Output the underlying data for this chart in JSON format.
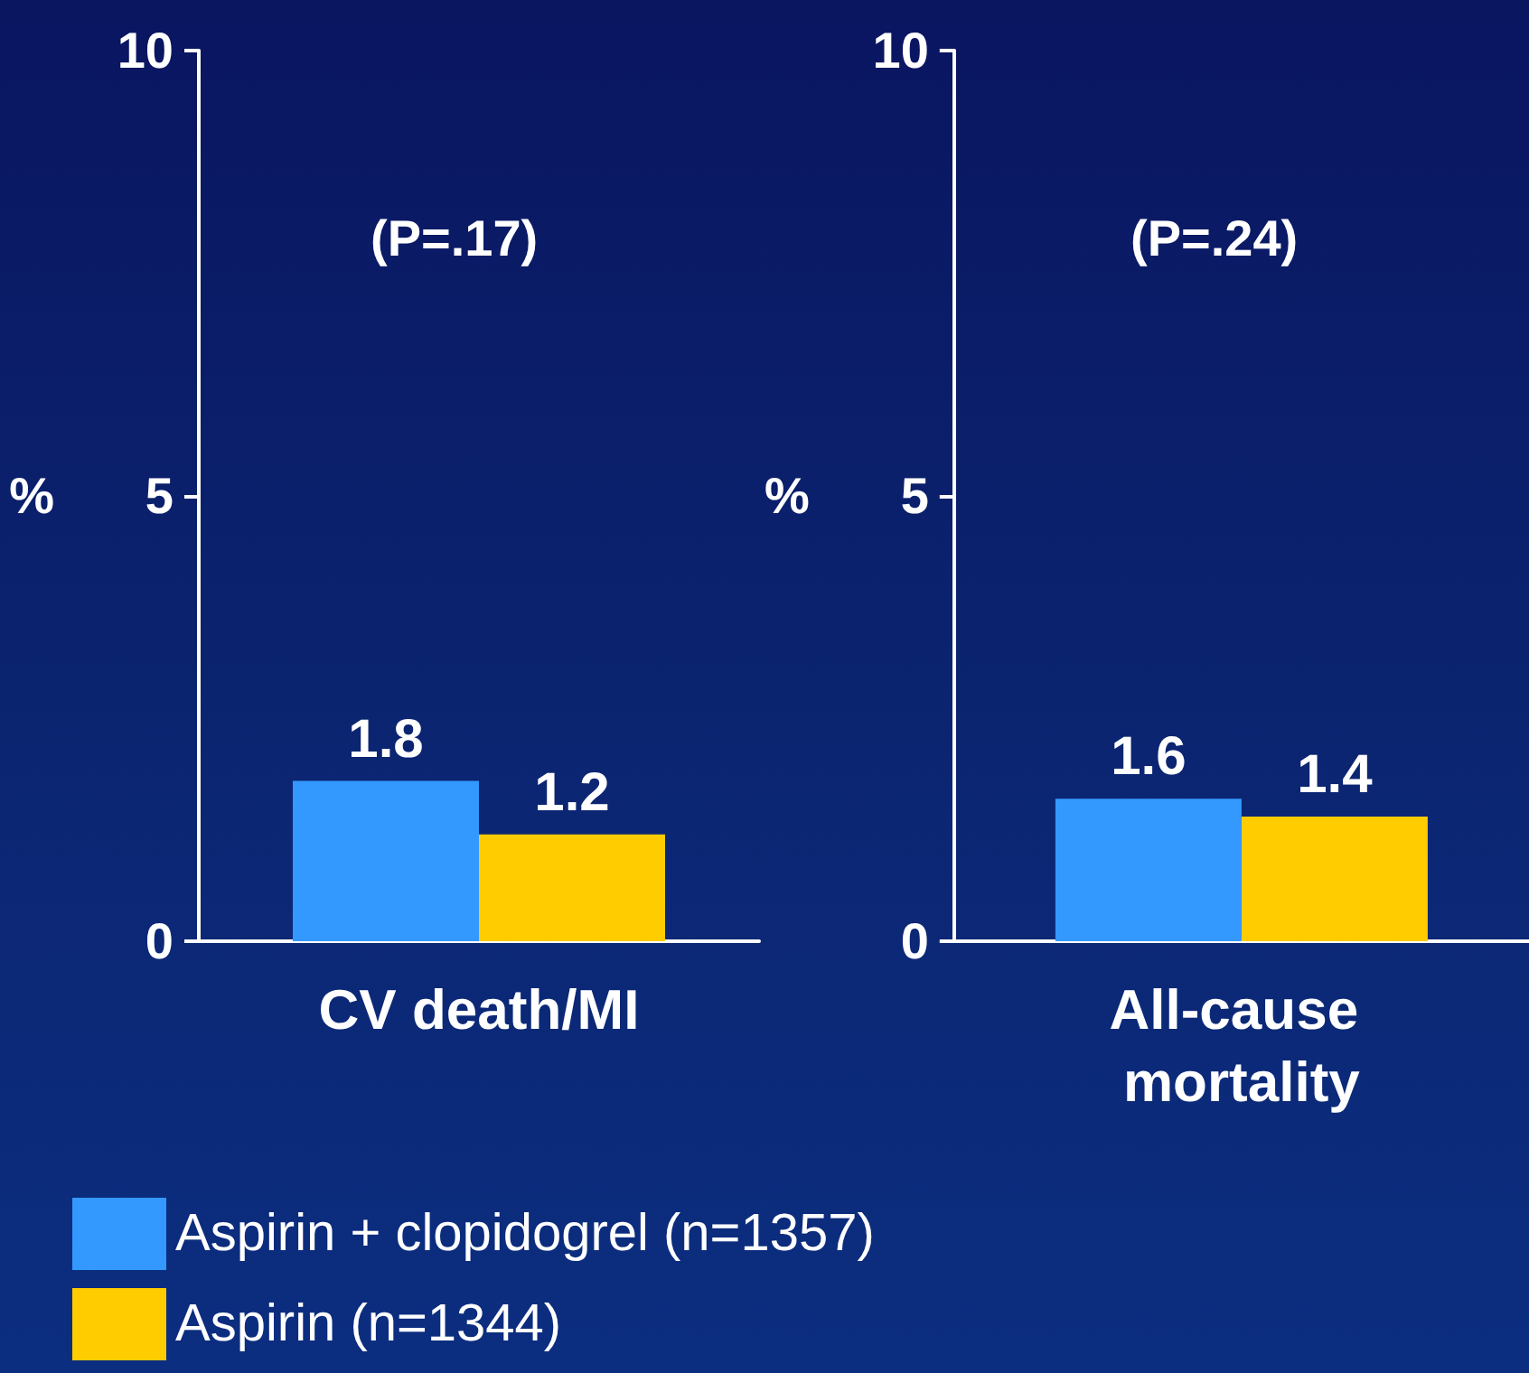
{
  "chart_data": [
    {
      "type": "bar",
      "categories": [
        "CV death/MI"
      ],
      "ylabel": "%",
      "ylim": [
        0,
        10
      ],
      "yticks": [
        0,
        5,
        10
      ],
      "annotations": [
        "(P=.17)"
      ],
      "data_labels": true,
      "legend": "bottom left",
      "grid": false,
      "series": [
        {
          "name": "Aspirin + clopidogrel (n=1357)",
          "color": "#3399ff",
          "values": [
            1.8
          ]
        },
        {
          "name": "Aspirin (n=1344)",
          "color": "#ffcc00",
          "values": [
            1.2
          ]
        }
      ]
    },
    {
      "type": "bar",
      "categories": [
        "All-cause mortality"
      ],
      "ylabel": "%",
      "ylim": [
        0,
        10
      ],
      "yticks": [
        0,
        5,
        10
      ],
      "annotations": [
        "(P=.24)"
      ],
      "data_labels": true,
      "legend": false,
      "grid": false,
      "series": [
        {
          "color": "#3399ff",
          "values": [
            1.6
          ]
        },
        {
          "color": "#ffcc00",
          "values": [
            1.4
          ]
        }
      ]
    }
  ]
}
